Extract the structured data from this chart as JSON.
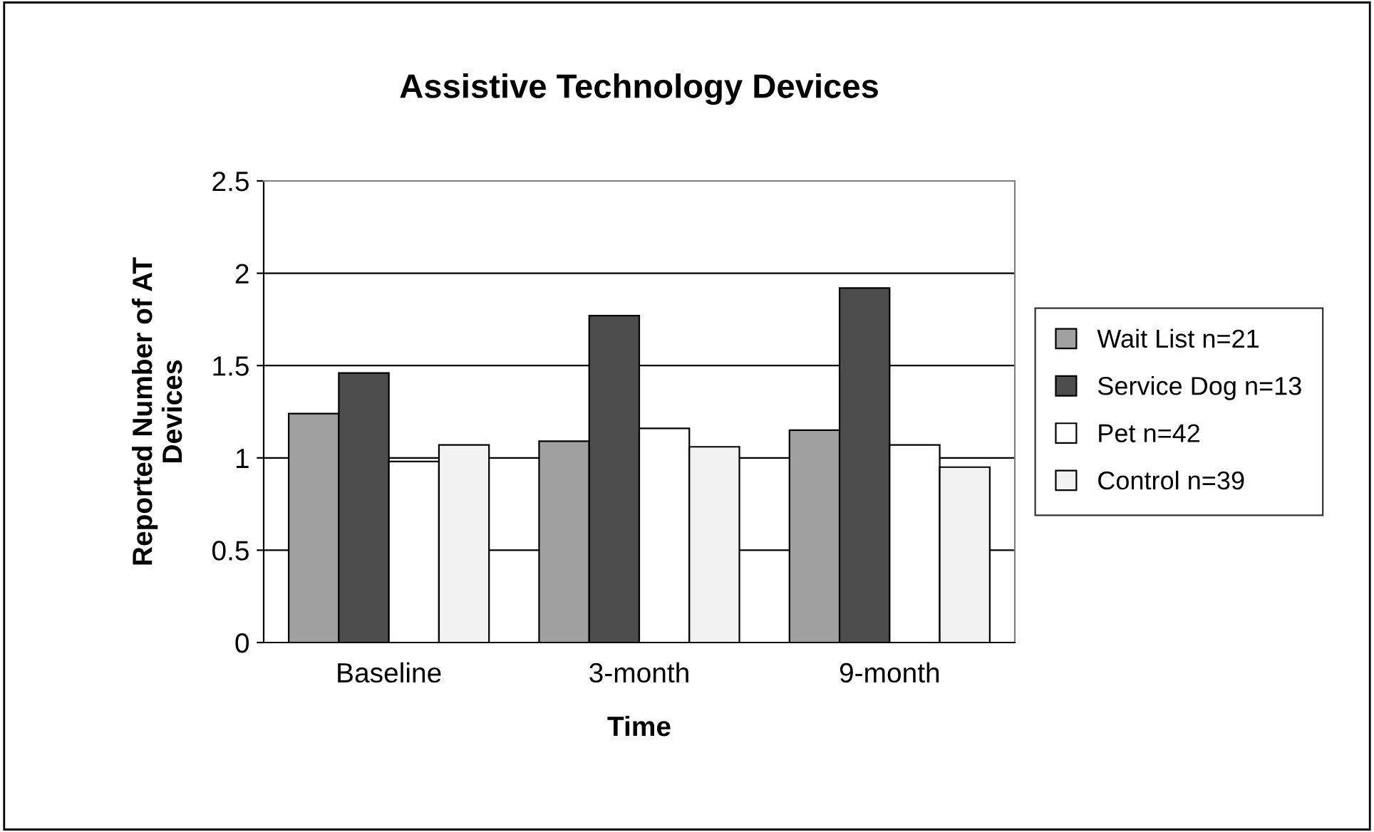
{
  "chart_data": {
    "type": "bar",
    "title": "Assistive Technology Devices",
    "xlabel": "Time",
    "ylabel": "Reported Number of AT\nDevices",
    "categories": [
      "Baseline",
      "3-month",
      "9-month"
    ],
    "series": [
      {
        "name": "Wait List n=21",
        "color": "#a0a0a0",
        "values": [
          1.24,
          1.09,
          1.15
        ]
      },
      {
        "name": "Service Dog n=13",
        "color": "#4d4d4d",
        "values": [
          1.46,
          1.77,
          1.92
        ]
      },
      {
        "name": "Pet n=42",
        "color": "#ffffff",
        "values": [
          0.98,
          1.16,
          1.07
        ]
      },
      {
        "name": "Control n=39",
        "color": "#f2f2f2",
        "values": [
          1.07,
          1.06,
          0.95
        ]
      }
    ],
    "ylim": [
      0,
      2.5
    ],
    "yticks": [
      0,
      0.5,
      1,
      1.5,
      2,
      2.5
    ],
    "grid": "y",
    "legend": "right"
  }
}
